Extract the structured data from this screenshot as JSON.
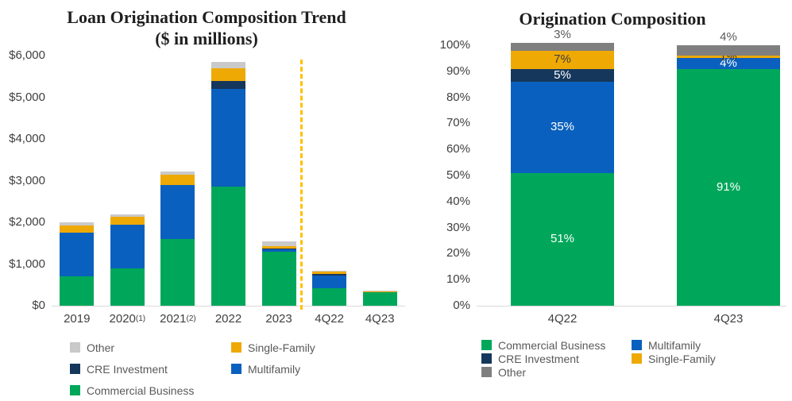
{
  "colors": {
    "commercial_business": "#00A75A",
    "multifamily": "#0A60BE",
    "cre_investment": "#16375C",
    "single_family": "#EEA904",
    "other_light_gray": "#C9C9C9",
    "other_dark_gray": "#7F7F7F",
    "separator_dashed_line": "#FFC000",
    "axis_line": "#D9D9D9",
    "axis_text": "#404040",
    "legend_text": "#595959"
  },
  "chart_data": [
    {
      "type": "bar",
      "stacked": true,
      "title": "Loan Origination Composition Trend",
      "subtitle": "($ in millions)",
      "ylabel": "$ in millions",
      "ylim": [
        0,
        6000
      ],
      "y_ticks": [
        "$6,000",
        "$5,000",
        "$4,000",
        "$3,000",
        "$2,000",
        "$1,000",
        "$0"
      ],
      "grid": false,
      "legend_position": "bottom",
      "categories": [
        {
          "label": "2019",
          "sup": ""
        },
        {
          "label": "2020",
          "sup": "(1)"
        },
        {
          "label": "2021",
          "sup": "(2)"
        },
        {
          "label": "2022",
          "sup": ""
        },
        {
          "label": "2023",
          "sup": ""
        },
        {
          "label": "4Q22",
          "sup": ""
        },
        {
          "label": "4Q23",
          "sup": ""
        }
      ],
      "separator_after": "2023",
      "series": [
        {
          "name": "Commercial Business",
          "color": "#00A75A",
          "values": [
            710,
            900,
            1600,
            2850,
            1300,
            425,
            320
          ]
        },
        {
          "name": "Multifamily",
          "color": "#0A60BE",
          "values": [
            1040,
            1040,
            1300,
            2350,
            50,
            290,
            15
          ]
        },
        {
          "name": "CRE Investment",
          "color": "#16375C",
          "values": [
            0,
            0,
            0,
            200,
            30,
            40,
            0
          ]
        },
        {
          "name": "Single-Family",
          "color": "#EEA904",
          "values": [
            180,
            200,
            250,
            300,
            50,
            60,
            5
          ]
        },
        {
          "name": "Other",
          "color": "#C9C9C9",
          "values": [
            75,
            60,
            60,
            150,
            110,
            25,
            15
          ]
        }
      ],
      "legend_rows": [
        [
          "Other",
          "Single-Family"
        ],
        [
          "CRE Investment",
          "Multifamily"
        ],
        [
          "Commercial Business"
        ]
      ]
    },
    {
      "type": "bar",
      "stacked": true,
      "percent": true,
      "title": "Origination Composition",
      "ylim": [
        0,
        100
      ],
      "y_ticks": [
        "100%",
        "90%",
        "80%",
        "70%",
        "60%",
        "50%",
        "40%",
        "30%",
        "20%",
        "10%",
        "0%"
      ],
      "grid": false,
      "legend_position": "bottom",
      "categories": [
        {
          "label": "4Q22",
          "sup": ""
        },
        {
          "label": "4Q23",
          "sup": ""
        }
      ],
      "series": [
        {
          "name": "Commercial Business",
          "color": "#00A75A",
          "values": [
            51,
            91
          ],
          "labels": [
            "51%",
            "91%"
          ],
          "label_styles": [
            "inside-light",
            "inside-light"
          ]
        },
        {
          "name": "Multifamily",
          "color": "#0A60BE",
          "values": [
            35,
            4
          ],
          "labels": [
            "35%",
            "4%"
          ],
          "label_styles": [
            "inside-light",
            "inside-light"
          ]
        },
        {
          "name": "CRE Investment",
          "color": "#16375C",
          "values": [
            5,
            0
          ],
          "labels": [
            "5%",
            ""
          ],
          "label_styles": [
            "inside-light",
            "inside-light"
          ]
        },
        {
          "name": "Single-Family",
          "color": "#EEA904",
          "values": [
            7,
            1
          ],
          "labels": [
            "7%",
            "1%"
          ],
          "label_styles": [
            "inside-dark",
            "inside-dark"
          ]
        },
        {
          "name": "Other",
          "color": "#7F7F7F",
          "values": [
            3,
            4
          ],
          "labels": [
            "3%",
            "4%"
          ],
          "label_styles": [
            "above",
            "above"
          ]
        }
      ],
      "legend_rows": [
        [
          "Commercial Business",
          "Multifamily"
        ],
        [
          "CRE Investment",
          "Single-Family"
        ],
        [
          "Other"
        ]
      ]
    }
  ]
}
